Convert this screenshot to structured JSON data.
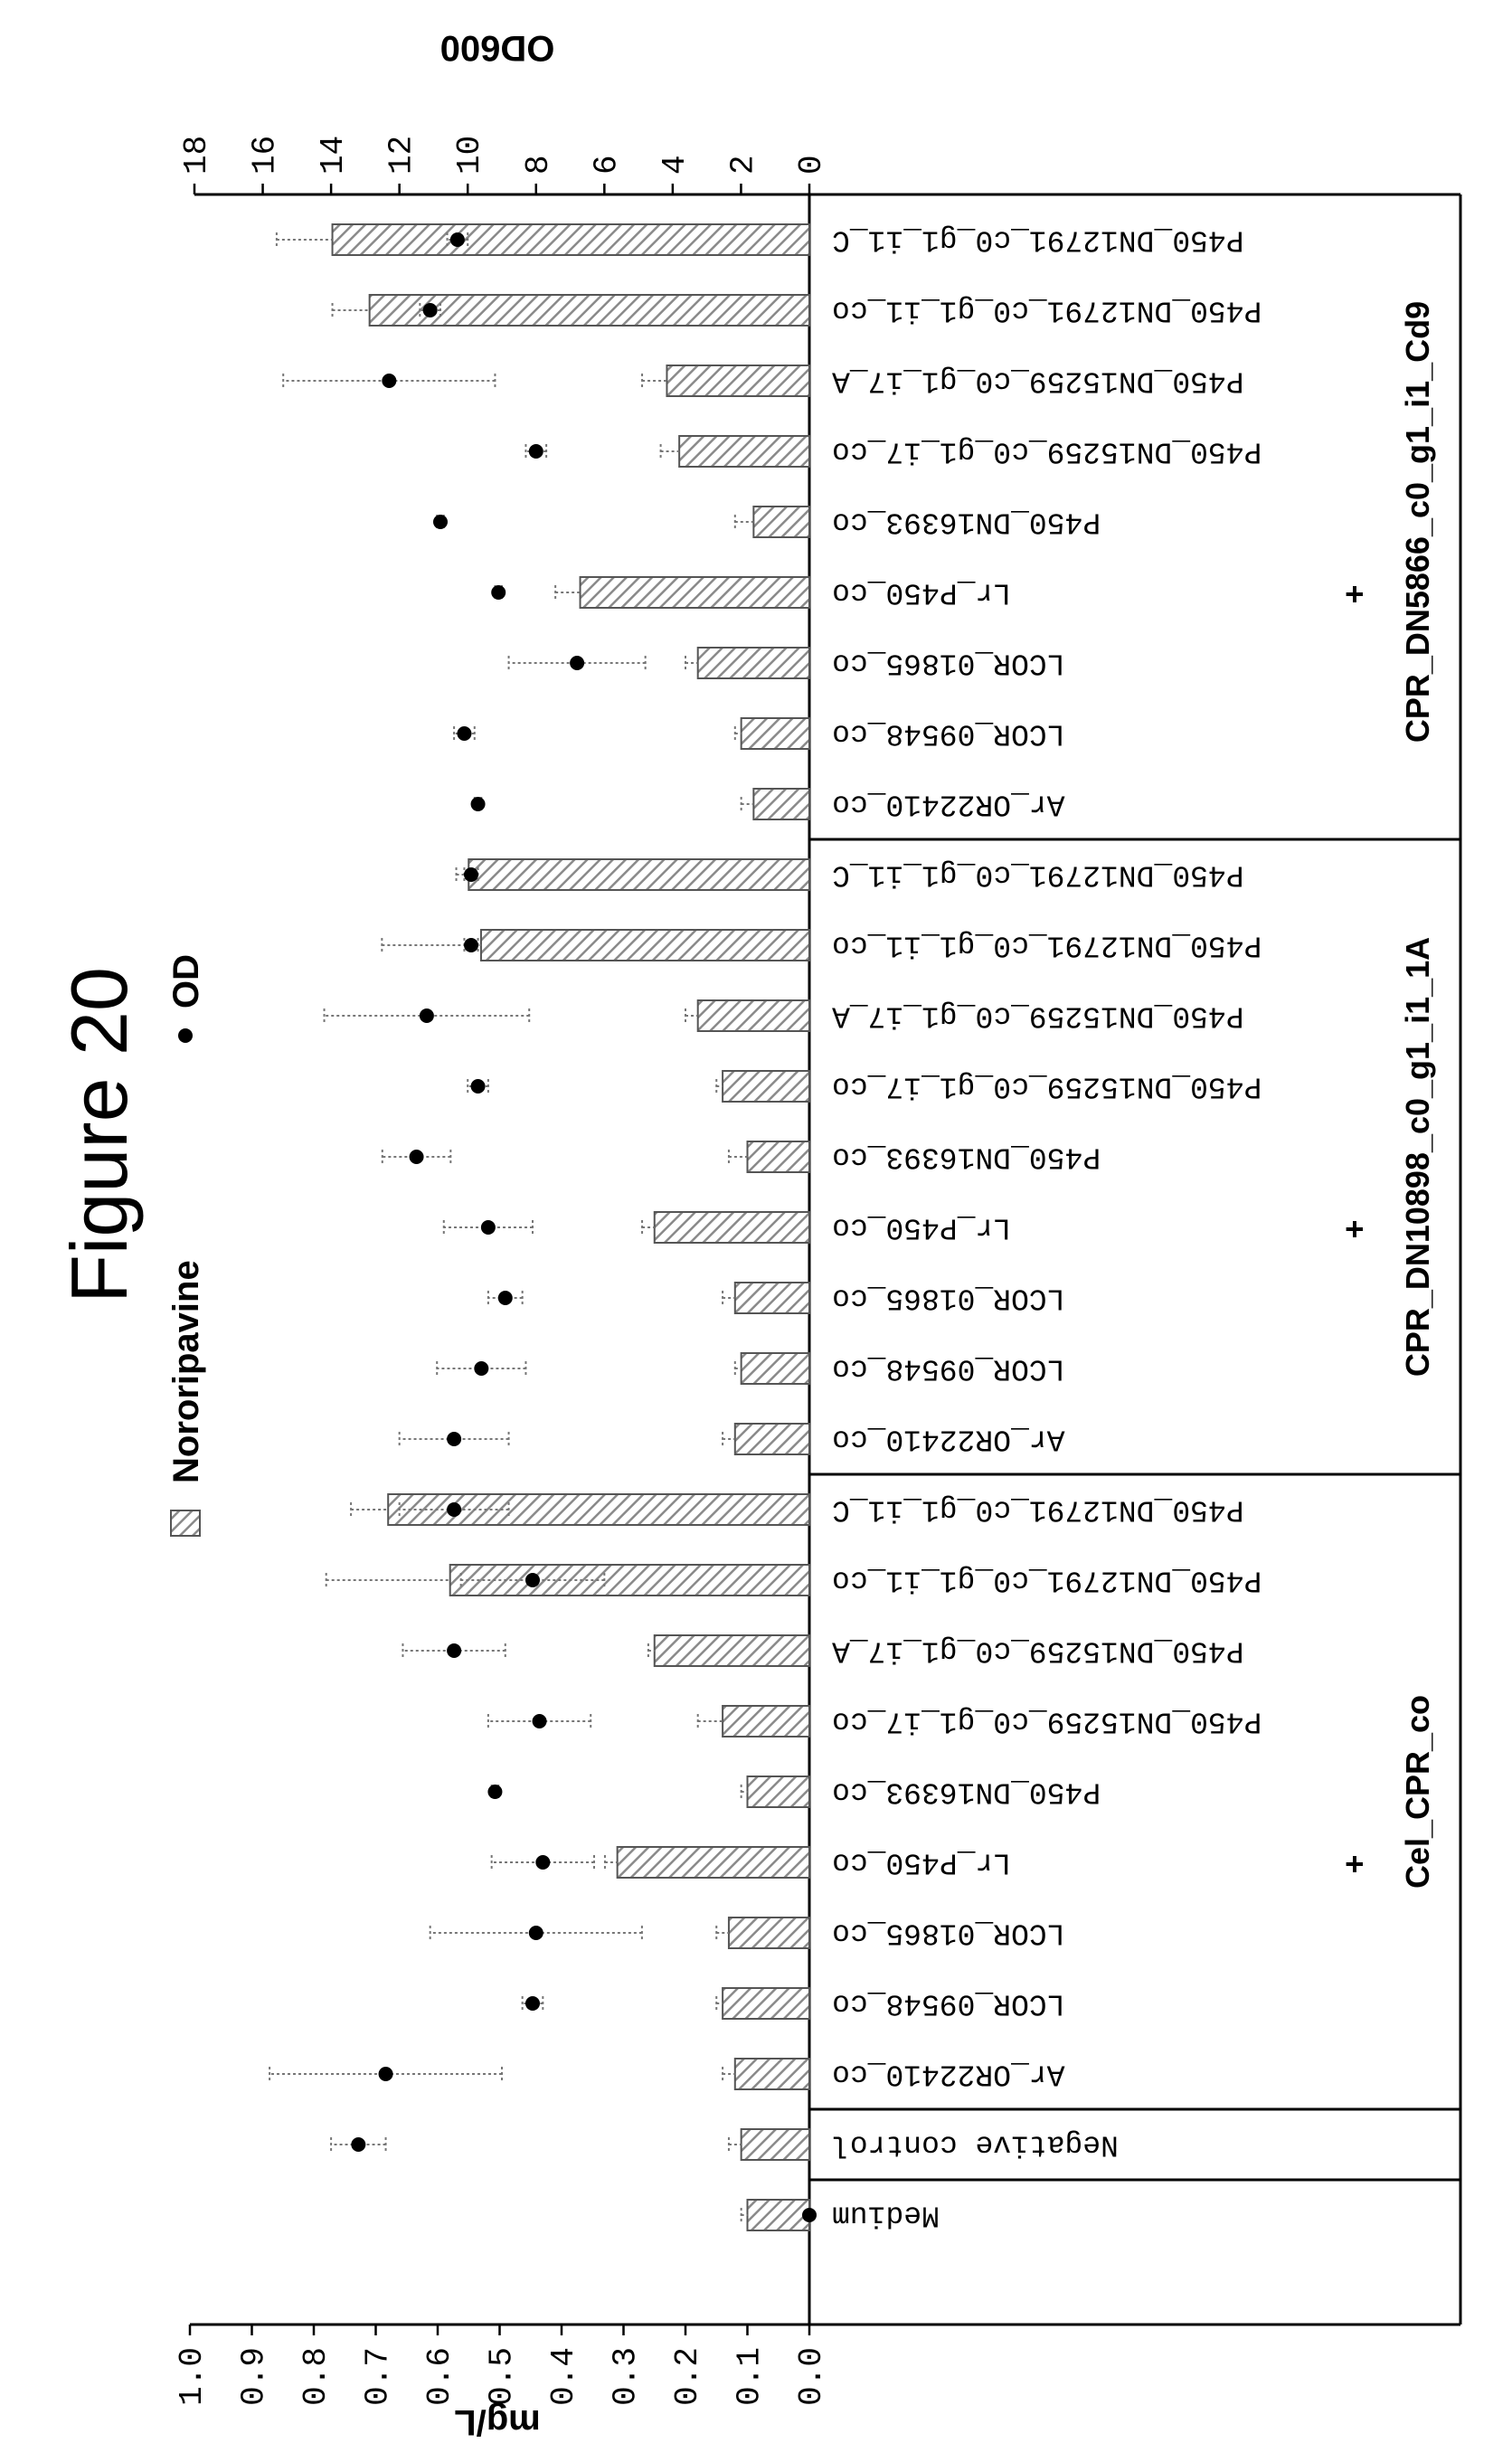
{
  "figure_title": "Figure 20",
  "chart_data": {
    "type": "bar",
    "orientation": "rotated -90 degrees (bars extend up the page)",
    "legend": [
      {
        "name": "Nororipavine",
        "marker": "hatched bar"
      },
      {
        "name": "OD",
        "marker": "filled dot"
      }
    ],
    "primary_axis": {
      "title": "mg/L",
      "range": [
        0,
        1.0
      ],
      "ticks": [
        "0.0",
        "0.1",
        "0.2",
        "0.3",
        "0.4",
        "0.5",
        "0.6",
        "0.7",
        "0.8",
        "0.9",
        "1.0"
      ]
    },
    "secondary_axis": {
      "title": "OD600",
      "range": [
        0,
        18
      ],
      "ticks": [
        "0",
        "2",
        "4",
        "6",
        "8",
        "10",
        "12",
        "14",
        "16",
        "18"
      ]
    },
    "categories": [
      {
        "label": "P450_DN12791_c0_g1_i1_C",
        "group": "CPR_DN5866_c0_g1_i1_Cd9",
        "mg_l": 0.77,
        "mg_l_err": 0.09,
        "od": 10.3,
        "od_err": 0.3
      },
      {
        "label": "P450_DN12791_c0_g1_i1_co",
        "group": "CPR_DN5866_c0_g1_i1_Cd9",
        "mg_l": 0.71,
        "mg_l_err": 0.06,
        "od": 11.1,
        "od_err": 0.3
      },
      {
        "label": "P450_DN15259_c0_g1_i7_A",
        "group": "CPR_DN5866_c0_g1_i1_Cd9",
        "mg_l": 0.23,
        "mg_l_err": 0.04,
        "od": 12.3,
        "od_err": 3.1
      },
      {
        "label": "P450_DN15259_c0_g1_i7_co",
        "group": "CPR_DN5866_c0_g1_i1_Cd9",
        "mg_l": 0.21,
        "mg_l_err": 0.03,
        "od": 8.0,
        "od_err": 0.3
      },
      {
        "label": "P450_DN16393_co",
        "group": "CPR_DN5866_c0_g1_i1_Cd9",
        "mg_l": 0.09,
        "mg_l_err": 0.03,
        "od": 10.8,
        "od_err": 0.1
      },
      {
        "label": "Lr_P450_co",
        "group": "CPR_DN5866_c0_g1_i1_Cd9",
        "mg_l": 0.37,
        "mg_l_err": 0.04,
        "od": 9.1,
        "od_err": 0.1
      },
      {
        "label": "LCOR_01865_co",
        "group": "CPR_DN5866_c0_g1_i1_Cd9",
        "mg_l": 0.18,
        "mg_l_err": 0.02,
        "od": 6.8,
        "od_err": 2.0
      },
      {
        "label": "LCOR_09548_co",
        "group": "CPR_DN5866_c0_g1_i1_Cd9",
        "mg_l": 0.11,
        "mg_l_err": 0.01,
        "od": 10.1,
        "od_err": 0.3
      },
      {
        "label": "Ar_OR22410_co",
        "group": "CPR_DN5866_c0_g1_i1_Cd9",
        "mg_l": 0.09,
        "mg_l_err": 0.02,
        "od": 9.7,
        "od_err": 0.1
      },
      {
        "label": "P450_DN12791_c0_g1_i1_C",
        "group": "CPR_DN10898_c0_g1_i1_1A",
        "mg_l": 0.55,
        "mg_l_err": 0.02,
        "od": 9.9,
        "od_err": 0.2
      },
      {
        "label": "P450_DN12791_c0_g1_i1_co",
        "group": "CPR_DN10898_c0_g1_i1_1A",
        "mg_l": 0.53,
        "mg_l_err": 0.16,
        "od": 9.9,
        "od_err": 0.2
      },
      {
        "label": "P450_DN15259_c0_g1_i7_A",
        "group": "CPR_DN10898_c0_g1_i1_1A",
        "mg_l": 0.18,
        "mg_l_err": 0.02,
        "od": 11.2,
        "od_err": 3.0
      },
      {
        "label": "P450_DN15259_c0_g1_i7_co",
        "group": "CPR_DN10898_c0_g1_i1_1A",
        "mg_l": 0.14,
        "mg_l_err": 0.01,
        "od": 9.7,
        "od_err": 0.3
      },
      {
        "label": "P450_DN16393_co",
        "group": "CPR_DN10898_c0_g1_i1_1A",
        "mg_l": 0.1,
        "mg_l_err": 0.03,
        "od": 11.5,
        "od_err": 1.0
      },
      {
        "label": "Lr_P450_co",
        "group": "CPR_DN10898_c0_g1_i1_1A",
        "mg_l": 0.25,
        "mg_l_err": 0.02,
        "od": 9.4,
        "od_err": 1.3
      },
      {
        "label": "LCOR_01865_co",
        "group": "CPR_DN10898_c0_g1_i1_1A",
        "mg_l": 0.12,
        "mg_l_err": 0.02,
        "od": 8.9,
        "od_err": 0.5
      },
      {
        "label": "LCOR_09548_co",
        "group": "CPR_DN10898_c0_g1_i1_1A",
        "mg_l": 0.11,
        "mg_l_err": 0.01,
        "od": 9.6,
        "od_err": 1.3
      },
      {
        "label": "Ar_OR22410_co",
        "group": "CPR_DN10898_c0_g1_i1_1A",
        "mg_l": 0.12,
        "mg_l_err": 0.02,
        "od": 10.4,
        "od_err": 1.6
      },
      {
        "label": "P450_DN12791_c0_g1_i1_C",
        "group": "Cel_CPR_co",
        "mg_l": 0.68,
        "mg_l_err": 0.06,
        "od": 10.4,
        "od_err": 1.6
      },
      {
        "label": "P450_DN12791_c0_g1_i1_co",
        "group": "Cel_CPR_co",
        "mg_l": 0.58,
        "mg_l_err": 0.2,
        "od": 8.1,
        "od_err": 2.1
      },
      {
        "label": "P450_DN15259_c0_g1_i7_A",
        "group": "Cel_CPR_co",
        "mg_l": 0.25,
        "mg_l_err": 0.01,
        "od": 10.4,
        "od_err": 1.5
      },
      {
        "label": "P450_DN15259_c0_g1_i7_co",
        "group": "Cel_CPR_co",
        "mg_l": 0.14,
        "mg_l_err": 0.04,
        "od": 7.9,
        "od_err": 1.5
      },
      {
        "label": "P450_DN16393_co",
        "group": "Cel_CPR_co",
        "mg_l": 0.1,
        "mg_l_err": 0.01,
        "od": 9.2,
        "od_err": 0.1
      },
      {
        "label": "Lr_P450_co",
        "group": "Cel_CPR_co",
        "mg_l": 0.31,
        "mg_l_err": 0.02,
        "od": 7.8,
        "od_err": 1.5
      },
      {
        "label": "LCOR_01865_co",
        "group": "Cel_CPR_co",
        "mg_l": 0.13,
        "mg_l_err": 0.02,
        "od": 8.0,
        "od_err": 3.1
      },
      {
        "label": "LCOR_09548_co",
        "group": "Cel_CPR_co",
        "mg_l": 0.14,
        "mg_l_err": 0.01,
        "od": 8.1,
        "od_err": 0.3
      },
      {
        "label": "Ar_OR22410_co",
        "group": "Cel_CPR_co",
        "mg_l": 0.12,
        "mg_l_err": 0.02,
        "od": 12.4,
        "od_err": 3.4
      },
      {
        "label": "Negative control",
        "group": "",
        "mg_l": 0.11,
        "mg_l_err": 0.02,
        "od": 13.2,
        "od_err": 0.8
      },
      {
        "label": "Medium",
        "group": "",
        "mg_l": 0.1,
        "mg_l_err": 0.01,
        "od": 0.0,
        "od_err": 0.0
      }
    ],
    "groups": [
      {
        "label": "CPR_DN5866_c0_g1_i1_Cd9",
        "prefix": "+"
      },
      {
        "label": "CPR_DN10898_c0_g1_i1_1A",
        "prefix": "+"
      },
      {
        "label": "Cel_CPR_co",
        "prefix": "+"
      }
    ],
    "colors": {
      "bar_stroke": "#555555",
      "hatch": "#8a8a8a",
      "dot": "#000000",
      "error": "#777777"
    }
  }
}
